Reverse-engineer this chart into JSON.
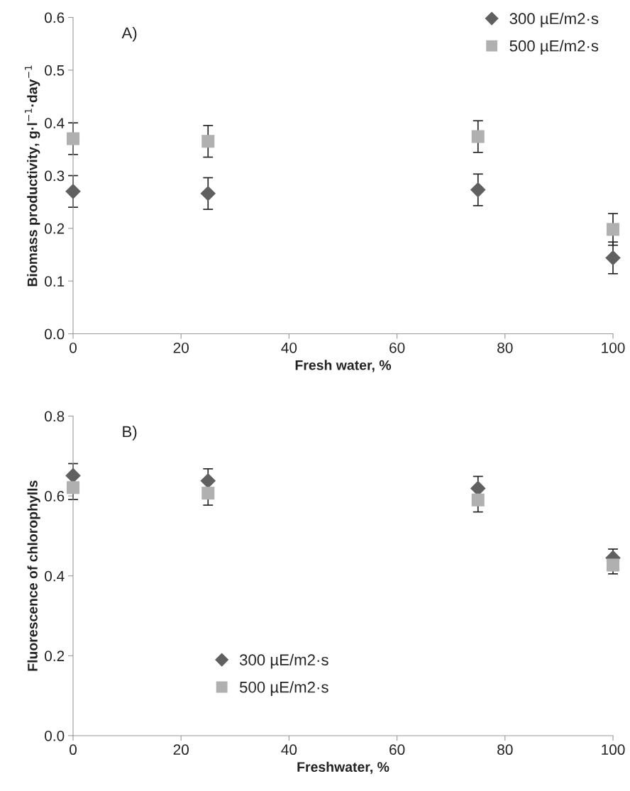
{
  "chart_data": [
    {
      "type": "scatter",
      "title": null,
      "annotations": [
        "A)"
      ],
      "xlabel": "Fresh water, %",
      "ylabel": "Biomass productivity, g·l$^{−1}$·day$^{−1}$",
      "x": [
        0,
        25,
        75,
        100
      ],
      "xlim": [
        0,
        100
      ],
      "xticks": [
        0,
        20,
        40,
        60,
        80,
        100
      ],
      "ylim": [
        0,
        0.6
      ],
      "yticks": [
        {
          "value": 0,
          "label": "0.0"
        },
        0.1,
        0.2,
        0.3,
        0.4,
        0.5,
        0.6
      ],
      "grid": false,
      "legend": "top right",
      "series": [
        {
          "name": "300 µE/m2·s",
          "color": "#606060",
          "marker": "diamond",
          "values": [
            0.27,
            0.266,
            0.273,
            0.144
          ],
          "errors": [
            0.03,
            0.03,
            0.03,
            0.03
          ]
        },
        {
          "name": "500 µE/m2·s",
          "color": "#b0b0b0",
          "marker": "square",
          "values": [
            0.37,
            0.365,
            0.374,
            0.198
          ],
          "errors": [
            0.03,
            0.03,
            0.03,
            0.03
          ]
        }
      ]
    },
    {
      "type": "scatter",
      "annotations": [
        "B)"
      ],
      "xlabel": "Freshwater, %",
      "ylabel": "Fluorescence of chlorophylls",
      "x": [
        0,
        25,
        75,
        100
      ],
      "xlim": [
        0,
        100
      ],
      "xticks": [
        0,
        20,
        40,
        60,
        80,
        100
      ],
      "ylim": [
        0,
        0.8
      ],
      "yticks": [
        {
          "value": 0,
          "label": "0.0"
        },
        0.2,
        0.4,
        0.6,
        0.8
      ],
      "grid": false,
      "legend": "bottom left",
      "series": [
        {
          "name": "300 µE/m2·s",
          "color": "#606060",
          "marker": "diamond",
          "values": [
            0.651,
            0.638,
            0.619,
            0.445
          ],
          "errors": [
            0.03,
            0.03,
            0.03,
            0.022
          ]
        },
        {
          "name": "500 µE/m2·s",
          "color": "#b0b0b0",
          "marker": "square",
          "values": [
            0.621,
            0.607,
            0.59,
            0.427
          ],
          "errors": [
            0.03,
            0.03,
            0.03,
            0.022
          ]
        }
      ]
    }
  ]
}
